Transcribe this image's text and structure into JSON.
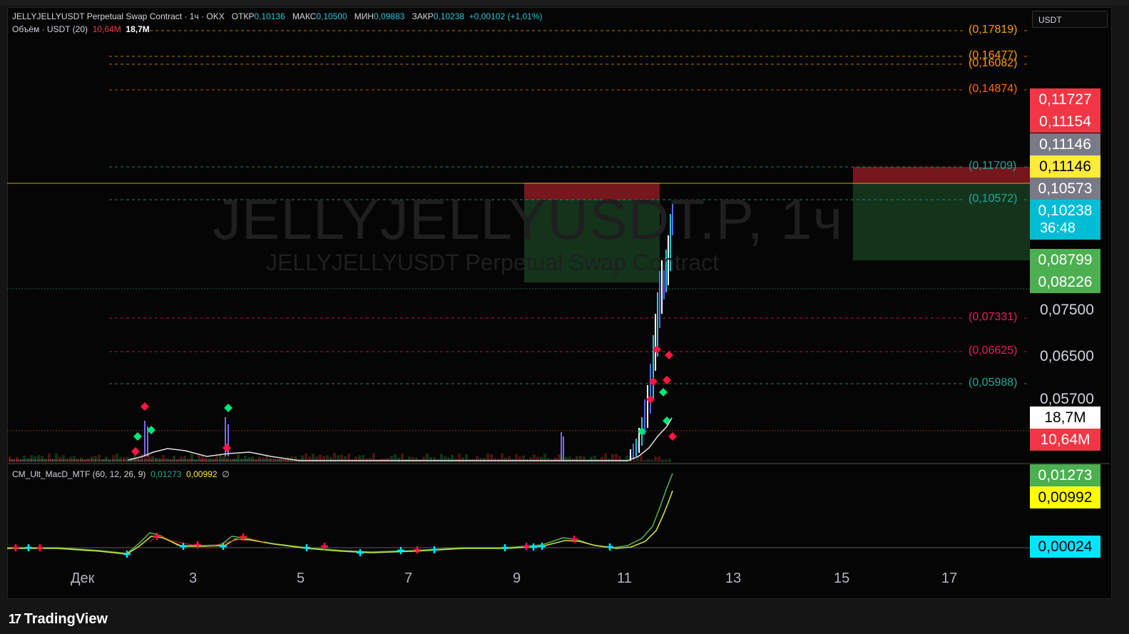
{
  "symbol_legend": {
    "title": "JELLYJELLYUSDT Perpetual Swap Contract · 1ч · OKX",
    "open_label": "ОТКР",
    "open": "0,10136",
    "high_label": "МАКС",
    "high": "0,10500",
    "low_label": "МИН",
    "low": "0,09883",
    "close_label": "ЗАКР",
    "close": "0,10238",
    "change": "+0,00102 (+1,01%)"
  },
  "volume_legend": {
    "label": "Объём · USDT (20)",
    "v1": "10,64M",
    "v2": "18,7M"
  },
  "currency_selector": "USDT",
  "watermark": {
    "symbol": "JELLYJELLYUSDT.P, 1ч",
    "description": "JELLYJELLYUSDT Perpetual Swap Contract"
  },
  "level_lines": [
    {
      "label": "(0,17819)",
      "color": "#ff9800"
    },
    {
      "label": "(0,16477)",
      "color": "#ff9800"
    },
    {
      "label": "(0,16082)",
      "color": "#ff9800"
    },
    {
      "label": "(0,14874)",
      "color": "#ff6d00"
    },
    {
      "label": "(0,11709)",
      "color": "#26a69a"
    },
    {
      "label": "(0,10572)",
      "color": "#26a69a"
    },
    {
      "label": "(0,07331)",
      "color": "#e91e63"
    },
    {
      "label": "(0,06625)",
      "color": "#e91e63"
    },
    {
      "label": "(0,05988)",
      "color": "#26a69a"
    }
  ],
  "price_scale_boxes": [
    {
      "value": "0,11727",
      "bg": "#f23645",
      "fg": "#ffffff"
    },
    {
      "value": "0,11154",
      "bg": "#f23645",
      "fg": "#ffffff"
    },
    {
      "value": "0,11146",
      "bg": "#787b86",
      "fg": "#ffffff"
    },
    {
      "value": "0,11146",
      "bg": "#ffeb3b",
      "fg": "#000000"
    },
    {
      "value": "0,10573",
      "bg": "#787b86",
      "fg": "#ffffff"
    },
    {
      "value": "0,10238",
      "bg": "#00bcd4",
      "fg": "#ffffff"
    },
    {
      "value": "0,08799",
      "bg": "#4caf50",
      "fg": "#ffffff"
    },
    {
      "value": "0,08226",
      "bg": "#4caf50",
      "fg": "#ffffff"
    }
  ],
  "countdown": "36:48",
  "price_axis_ticks": [
    "0,07500",
    "0,06500",
    "0,05700"
  ],
  "volume_boxes": [
    {
      "value": "18,7M",
      "bg": "#ffffff",
      "fg": "#000000"
    },
    {
      "value": "10,64M",
      "bg": "#f23645",
      "fg": "#ffffff"
    }
  ],
  "macd_legend": {
    "label": "CM_Ult_MacD_MTF (60, 12, 26, 9)",
    "v1": "0,01273",
    "v2": "0,00992",
    "v3": "∅"
  },
  "macd_boxes": [
    {
      "value": "0,01273",
      "bg": "#4caf50",
      "fg": "#ffffff"
    },
    {
      "value": "0,00992",
      "bg": "#ffff00",
      "fg": "#000000"
    },
    {
      "value": "0,00024",
      "bg": "#00e5ff",
      "fg": "#000000"
    }
  ],
  "time_axis": [
    "Дек",
    "3",
    "5",
    "7",
    "9",
    "11",
    "13",
    "15",
    "17"
  ],
  "branding": "TradingView"
}
